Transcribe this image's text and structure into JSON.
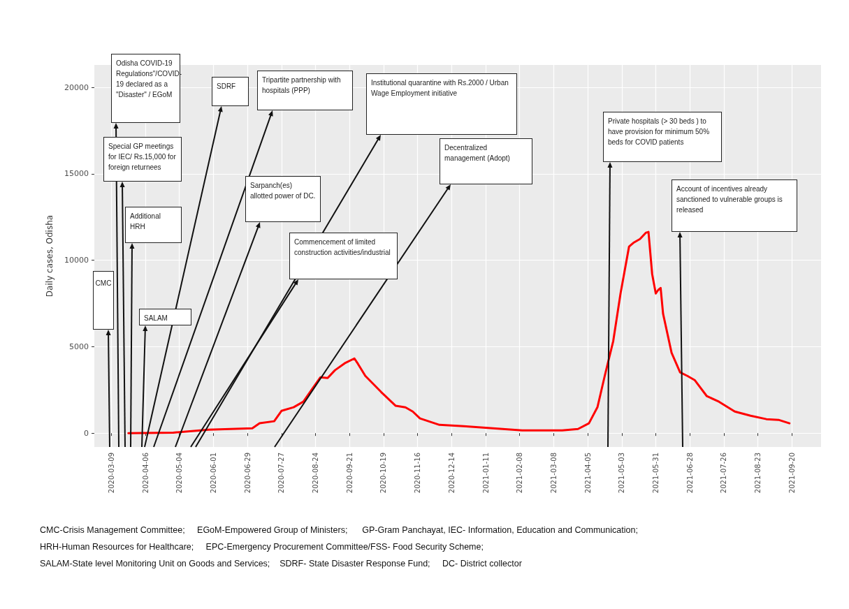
{
  "chart_data": {
    "type": "line",
    "ylabel": "Daily cases, Odisha",
    "xlim": [
      "2020-02-24",
      "2021-10-14"
    ],
    "ylim": [
      -800,
      21300
    ],
    "xticks": [
      "2020-03-09",
      "2020-04-06",
      "2020-05-04",
      "2020-06-01",
      "2020-06-29",
      "2020-07-27",
      "2020-08-24",
      "2020-09-21",
      "2020-10-19",
      "2020-11-16",
      "2020-12-14",
      "2021-01-11",
      "2021-02-08",
      "2021-03-08",
      "2021-04-05",
      "2021-05-03",
      "2021-05-31",
      "2021-06-28",
      "2021-07-26",
      "2021-08-23",
      "2021-09-20"
    ],
    "yticks": [
      0,
      5000,
      10000,
      15000,
      20000
    ],
    "grid": true,
    "legend": false,
    "marker": "none",
    "line_style": "solid",
    "series": [
      {
        "color": "#ff0000",
        "x": [
          "2020-03-23",
          "2020-04-29",
          "2020-05-28",
          "2020-07-03",
          "2020-07-09",
          "2020-07-21",
          "2020-07-27",
          "2020-08-06",
          "2020-08-14",
          "2020-08-22",
          "2020-08-28",
          "2020-09-03",
          "2020-09-09",
          "2020-09-17",
          "2020-09-25",
          "2020-09-28",
          "2020-10-04",
          "2020-10-17",
          "2020-10-29",
          "2020-11-06",
          "2020-11-12",
          "2020-11-18",
          "2020-12-04",
          "2020-12-24",
          "2021-01-25",
          "2021-02-10",
          "2021-03-15",
          "2021-03-28",
          "2021-04-06",
          "2021-04-13",
          "2021-04-19",
          "2021-04-26",
          "2021-05-02",
          "2021-05-09",
          "2021-05-13",
          "2021-05-18",
          "2021-05-23",
          "2021-05-25",
          "2021-05-28",
          "2021-05-31",
          "2021-06-02",
          "2021-06-04",
          "2021-06-06",
          "2021-06-13",
          "2021-06-20",
          "2021-06-26",
          "2021-07-02",
          "2021-07-12",
          "2021-07-22",
          "2021-08-04",
          "2021-08-17",
          "2021-08-30",
          "2021-09-09",
          "2021-09-18"
        ],
        "values": [
          0,
          30,
          200,
          280,
          570,
          690,
          1290,
          1500,
          1820,
          2630,
          3230,
          3190,
          3640,
          4040,
          4320,
          4000,
          3310,
          2380,
          1580,
          1490,
          1250,
          850,
          480,
          400,
          240,
          160,
          160,
          240,
          570,
          1500,
          3310,
          5330,
          8080,
          10790,
          11030,
          11230,
          11600,
          11640,
          9210,
          8080,
          8280,
          8400,
          6910,
          4650,
          3520,
          3310,
          3070,
          2140,
          1820,
          1250,
          1010,
          810,
          770,
          570
        ]
      }
    ],
    "annotations": [
      "CMC",
      "Odisha COVID-19 Regulations\"/COVID-19 declared as a \"Disaster\" / EGoM",
      "Special  GP meetings for IEC/ Rs.15,000 for foreign returnees",
      "Additional HRH",
      "SALAM",
      "SDRF",
      "Tripartite partnership with hospitals (PPP)",
      "Sarpanch(es) allotted power of DC.",
      "Commencement of limited construction activities/industrial",
      "Institutional quarantine with Rs.2000 / Urban Wage Employment initiative",
      "Decentralized management (Adopt)",
      "Private hospitals (> 30 beds ) to have  provision for minimum 50% beds for COVID patients",
      "Account of incentives  already sanctioned to vulnerable groups is released",
      "CMC-Crisis Management Committee;     EGoM-Empowered Group of Ministers;      GP-Gram Panchayat, IEC- Information, Education and Communication;",
      "HRH-Human Resources for Healthcare;     EPC-Emergency Procurement Committee/FSS- Food Security Scheme;",
      "SALAM-State level Monitoring Unit on Goods and Services;    SDRF- State Disaster Response Fund;     DC- District collector"
    ]
  }
}
